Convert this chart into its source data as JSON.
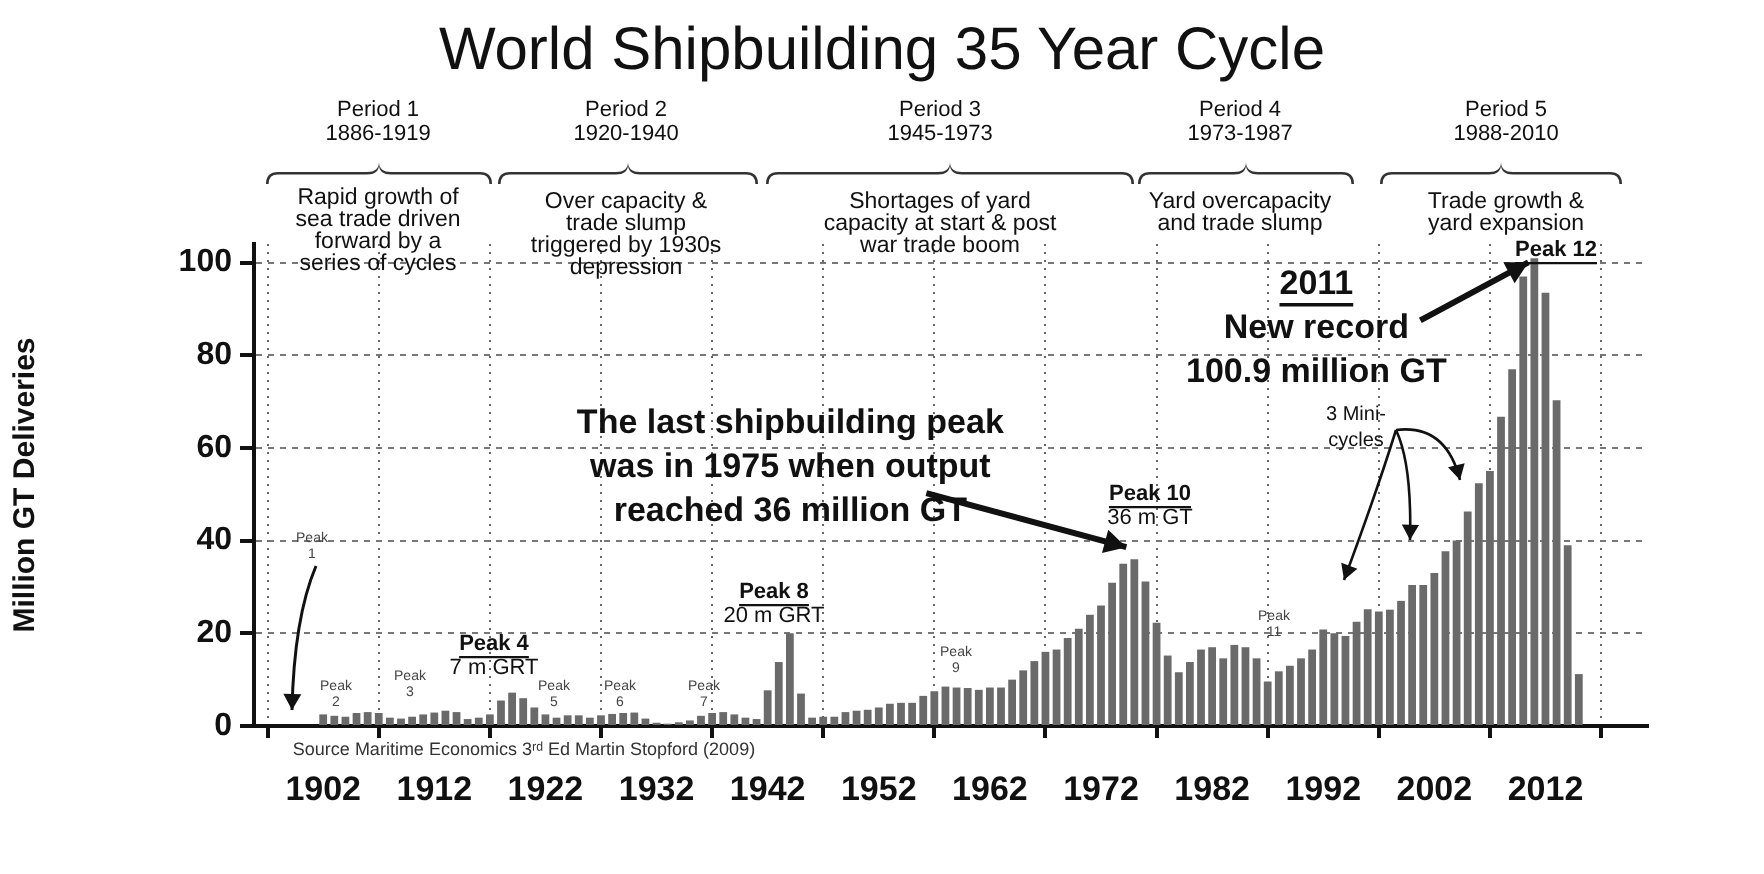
{
  "chart_data": {
    "type": "bar",
    "title": "World Shipbuilding 35 Year Cycle",
    "ylabel": "Million GT Deliveries",
    "color": "#6a6a6a",
    "x": [
      1902,
      1903,
      1904,
      1905,
      1906,
      1907,
      1908,
      1909,
      1910,
      1911,
      1912,
      1913,
      1914,
      1915,
      1916,
      1917,
      1918,
      1919,
      1920,
      1921,
      1922,
      1923,
      1924,
      1925,
      1926,
      1927,
      1928,
      1929,
      1930,
      1931,
      1932,
      1933,
      1934,
      1935,
      1936,
      1937,
      1938,
      1939,
      1940,
      1941,
      1942,
      1943,
      1944,
      1945,
      1946,
      1947,
      1948,
      1949,
      1950,
      1951,
      1952,
      1953,
      1954,
      1955,
      1956,
      1957,
      1958,
      1959,
      1960,
      1961,
      1962,
      1963,
      1964,
      1965,
      1966,
      1967,
      1968,
      1969,
      1970,
      1971,
      1972,
      1973,
      1974,
      1975,
      1976,
      1977,
      1978,
      1979,
      1980,
      1981,
      1982,
      1983,
      1984,
      1985,
      1986,
      1987,
      1988,
      1989,
      1990,
      1991,
      1992,
      1993,
      1994,
      1995,
      1996,
      1997,
      1998,
      1999,
      2000,
      2001,
      2002,
      2003,
      2004,
      2005,
      2006,
      2007,
      2008,
      2009,
      2010,
      2011,
      2012,
      2013,
      2014,
      2015
    ],
    "values": [
      2.5,
      2.2,
      2,
      2.8,
      3,
      2.8,
      1.8,
      1.6,
      2,
      2.5,
      2.9,
      3.3,
      3,
      1.5,
      1.8,
      2.5,
      5.5,
      7.2,
      6,
      4,
      2.5,
      1.8,
      2.3,
      2.3,
      1.8,
      2.3,
      2.6,
      2.8,
      2.9,
      1.6,
      0.7,
      0.5,
      0.8,
      1.2,
      2.2,
      2.8,
      3,
      2.5,
      1.8,
      1.5,
      7.7,
      13.8,
      20,
      7,
      1.8,
      2,
      2,
      3,
      3.3,
      3.5,
      4,
      4.8,
      5,
      5,
      6.5,
      7.5,
      8.5,
      8.3,
      8.2,
      7.8,
      8.3,
      8.3,
      10,
      12,
      14,
      16,
      16.5,
      19,
      21,
      24,
      26,
      30.9,
      35,
      36,
      31.2,
      22.3,
      15.2,
      11.6,
      13.8,
      16.5,
      17,
      14.6,
      17.5,
      17,
      14.6,
      9.6,
      11.8,
      13,
      14.6,
      16.5,
      20.8,
      20,
      19.4,
      22.5,
      25.2,
      24.7,
      25.1,
      27,
      30.4,
      30.4,
      33,
      37.7,
      40,
      46.3,
      52.4,
      55,
      66.7,
      77,
      97,
      100.9,
      93.5,
      70.3,
      39,
      11.2
    ],
    "xlim": [
      1901,
      2016
    ],
    "xticks": [
      1902,
      1912,
      1922,
      1932,
      1942,
      1952,
      1962,
      1972,
      1982,
      1992,
      2002,
      2012
    ],
    "ylim": [
      0,
      104
    ],
    "yticks": [
      0,
      20,
      40,
      60,
      80,
      100
    ],
    "grid": true,
    "annotations": [
      "Period 1\n1886-1919",
      "Period 2\n1920-1940",
      "Period 3\n1945-1973",
      "Period 4\n1973-1987",
      "Period 5\n1988-2010",
      "Rapid growth of\nsea trade driven\nforward by a\nseries of cycles",
      "Over capacity &\ntrade slump\ntriggered by 1930s\ndepression",
      "Shortages of yard\ncapacity at start & post\nwar trade boom",
      "Yard overcapacity\nand trade slump",
      "Trade growth &\nyard expansion",
      {
        "text": "The last shipbuilding peak\nwas in 1975 when output\nreached 36 million GT",
        "x": 1975,
        "y": 36
      },
      {
        "text": "2011\nNew record\n100.9 million GT",
        "x": 2011,
        "y": 100.9
      },
      "Source Maritime Economics 3ʳᵈ Ed Martin Stopford (2009)",
      "3 Mini-\ncycles",
      "Peak\n1",
      "Peak\n2",
      "Peak\n3",
      "Peak 4\n7 m GRT",
      "Peak\n5",
      "Peak\n6",
      "Peak\n7",
      "Peak 8\n20 m GRT",
      "Peak\n9",
      "Peak 10\n36 m GT",
      "Peak\n11",
      "Peak 12"
    ]
  }
}
